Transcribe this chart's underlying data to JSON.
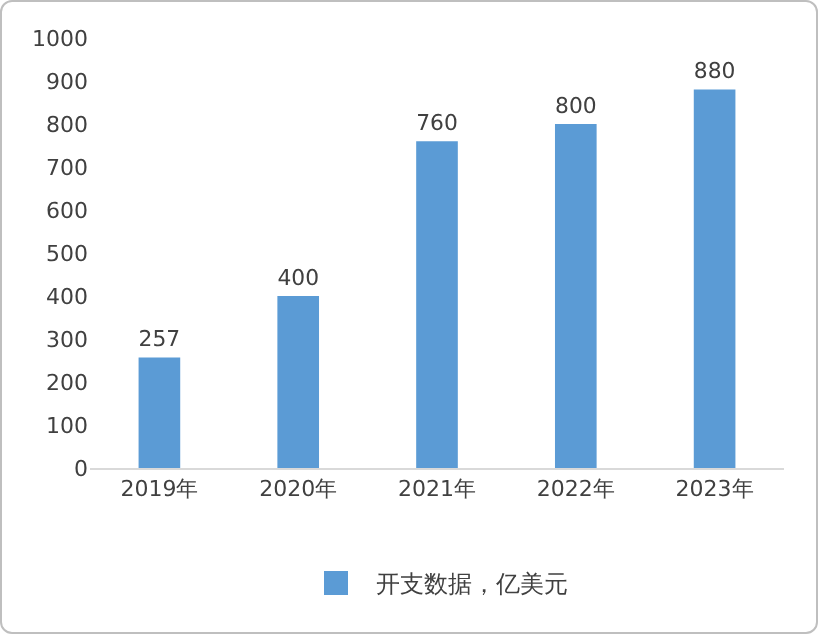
{
  "chart_data": {
    "type": "bar",
    "categories": [
      "2019年",
      "2020年",
      "2021年",
      "2022年",
      "2023年"
    ],
    "series": [
      {
        "name": "开支数据，亿美元",
        "color": "#5b9bd5",
        "values": [
          257,
          400,
          760,
          800,
          880
        ]
      }
    ],
    "ylim": [
      0,
      1000
    ],
    "yticks": [
      0,
      100,
      200,
      300,
      400,
      500,
      600,
      700,
      800,
      900,
      1000
    ],
    "grid": false,
    "legend": "bottom",
    "data_labels": true
  }
}
